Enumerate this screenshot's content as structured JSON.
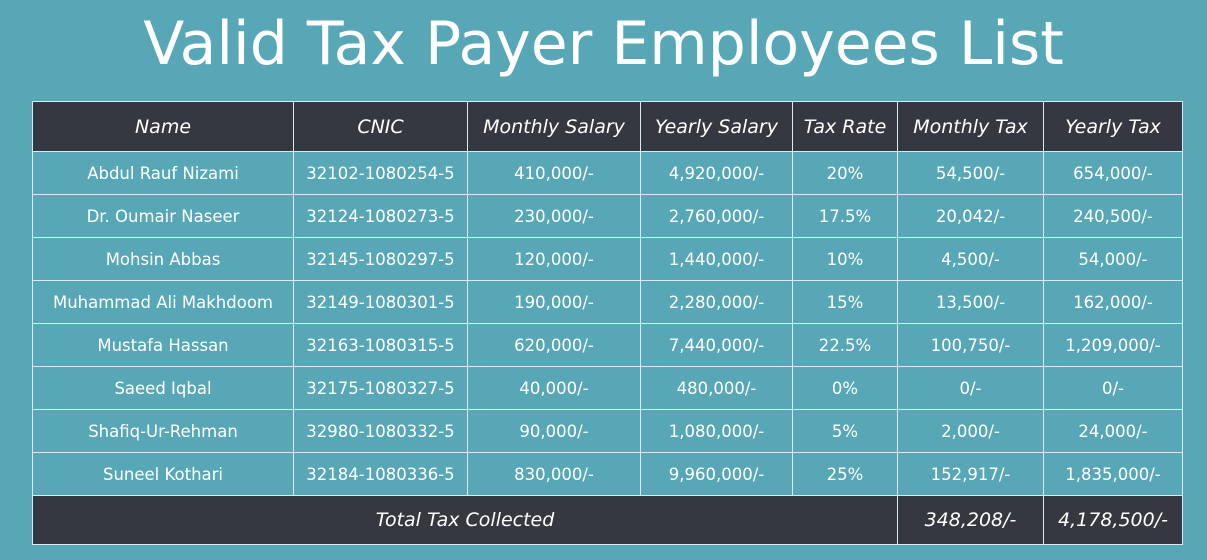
{
  "title": "Valid Tax Payer Employees List",
  "table": {
    "headers": [
      "Name",
      "CNIC",
      "Monthly Salary",
      "Yearly Salary",
      "Tax Rate",
      "Monthly Tax",
      "Yearly Tax"
    ],
    "rows": [
      [
        "Abdul Rauf Nizami",
        "32102-1080254-5",
        "410,000/-",
        "4,920,000/-",
        "20%",
        "54,500/-",
        "654,000/-"
      ],
      [
        "Dr. Oumair Naseer",
        "32124-1080273-5",
        "230,000/-",
        "2,760,000/-",
        "17.5%",
        "20,042/-",
        "240,500/-"
      ],
      [
        "Mohsin Abbas",
        "32145-1080297-5",
        "120,000/-",
        "1,440,000/-",
        "10%",
        "4,500/-",
        "54,000/-"
      ],
      [
        "Muhammad Ali Makhdoom",
        "32149-1080301-5",
        "190,000/-",
        "2,280,000/-",
        "15%",
        "13,500/-",
        "162,000/-"
      ],
      [
        "Mustafa Hassan",
        "32163-1080315-5",
        "620,000/-",
        "7,440,000/-",
        "22.5%",
        "100,750/-",
        "1,209,000/-"
      ],
      [
        "Saeed Iqbal",
        "32175-1080327-5",
        "40,000/-",
        "480,000/-",
        "0%",
        "0/-",
        "0/-"
      ],
      [
        "Shafiq-Ur-Rehman",
        "32980-1080332-5",
        "90,000/-",
        "1,080,000/-",
        "5%",
        "2,000/-",
        "24,000/-"
      ],
      [
        "Suneel Kothari",
        "32184-1080336-5",
        "830,000/-",
        "9,960,000/-",
        "25%",
        "152,917/-",
        "1,835,000/-"
      ]
    ],
    "footer": {
      "label": "Total Tax Collected",
      "monthly_total": "348,208/-",
      "yearly_total": "4,178,500/-"
    }
  },
  "colors": {
    "background": "#58a7b6",
    "header_background": "#353840",
    "text": "#ffffff",
    "grid_lines": "#d8ecf0"
  }
}
